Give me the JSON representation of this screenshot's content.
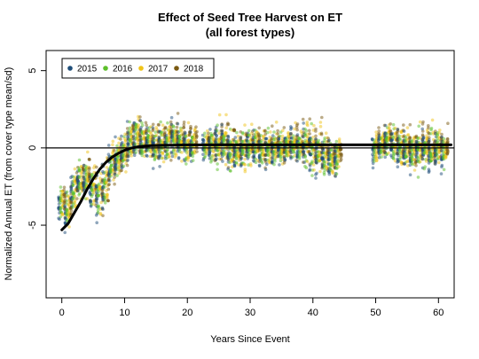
{
  "chart_data": {
    "type": "scatter",
    "title": "Effect of Seed Tree Harvest on ET",
    "subtitle": "(all forest types)",
    "xlabel": "Years Since Event",
    "ylabel": "Normalized Annual ET (from cover type mean/sd)",
    "xlim": [
      -2.5,
      62.5
    ],
    "ylim": [
      -9.7,
      6.3
    ],
    "xticks": [
      0,
      10,
      20,
      30,
      40,
      50,
      60
    ],
    "yticks": [
      -5,
      0,
      5
    ],
    "grid": false,
    "legend_position": "top-left",
    "reference_line_y": 0,
    "series": [
      {
        "name": "2015",
        "color": "#1f4e79",
        "offset": -0.45
      },
      {
        "name": "2016",
        "color": "#5cbf2a",
        "offset": -0.15
      },
      {
        "name": "2017",
        "color": "#f0c419",
        "offset": 0.15
      },
      {
        "name": "2018",
        "color": "#7a5a12",
        "offset": 0.45
      }
    ],
    "columns": [
      {
        "x": 0,
        "mean": -3.6,
        "spread": 1.4
      },
      {
        "x": 1,
        "mean": -4.0,
        "spread": 1.6
      },
      {
        "x": 2,
        "mean": -2.6,
        "spread": 1.6
      },
      {
        "x": 3,
        "mean": -2.0,
        "spread": 1.7
      },
      {
        "x": 4,
        "mean": -2.0,
        "spread": 1.8
      },
      {
        "x": 5,
        "mean": -2.5,
        "spread": 2.0
      },
      {
        "x": 6,
        "mean": -3.0,
        "spread": 2.2
      },
      {
        "x": 7,
        "mean": -2.5,
        "spread": 2.2
      },
      {
        "x": 8,
        "mean": -1.2,
        "spread": 1.8
      },
      {
        "x": 9,
        "mean": -0.6,
        "spread": 1.7
      },
      {
        "x": 10,
        "mean": -0.3,
        "spread": 1.6
      },
      {
        "x": 11,
        "mean": 0.5,
        "spread": 1.6
      },
      {
        "x": 12,
        "mean": 0.8,
        "spread": 1.6
      },
      {
        "x": 13,
        "mean": 0.6,
        "spread": 1.7
      },
      {
        "x": 14,
        "mean": 0.4,
        "spread": 1.8
      },
      {
        "x": 15,
        "mean": 0.2,
        "spread": 1.9
      },
      {
        "x": 16,
        "mean": 0.3,
        "spread": 1.8
      },
      {
        "x": 17,
        "mean": 0.5,
        "spread": 1.6
      },
      {
        "x": 18,
        "mean": 0.6,
        "spread": 1.5
      },
      {
        "x": 19,
        "mean": 0.4,
        "spread": 1.5
      },
      {
        "x": 20,
        "mean": 0.3,
        "spread": 1.5
      },
      {
        "x": 21,
        "mean": 0.4,
        "spread": 1.4
      },
      {
        "x": 23,
        "mean": 0.2,
        "spread": 1.2
      },
      {
        "x": 24,
        "mean": 0.0,
        "spread": 1.6
      },
      {
        "x": 25,
        "mean": 0.3,
        "spread": 1.8
      },
      {
        "x": 26,
        "mean": 0.2,
        "spread": 1.9
      },
      {
        "x": 27,
        "mean": 0.0,
        "spread": 1.8
      },
      {
        "x": 28,
        "mean": -0.2,
        "spread": 1.8
      },
      {
        "x": 29,
        "mean": 0.0,
        "spread": 1.8
      },
      {
        "x": 30,
        "mean": 0.1,
        "spread": 1.7
      },
      {
        "x": 31,
        "mean": 0.2,
        "spread": 1.6
      },
      {
        "x": 32,
        "mean": 0.0,
        "spread": 1.6
      },
      {
        "x": 33,
        "mean": -0.1,
        "spread": 1.5
      },
      {
        "x": 34,
        "mean": 0.1,
        "spread": 1.5
      },
      {
        "x": 35,
        "mean": 0.0,
        "spread": 1.5
      },
      {
        "x": 36,
        "mean": 0.2,
        "spread": 1.4
      },
      {
        "x": 37,
        "mean": 0.3,
        "spread": 1.6
      },
      {
        "x": 38,
        "mean": 0.1,
        "spread": 1.8
      },
      {
        "x": 39,
        "mean": 0.3,
        "spread": 2.0
      },
      {
        "x": 40,
        "mean": -0.2,
        "spread": 2.1
      },
      {
        "x": 41,
        "mean": -0.3,
        "spread": 2.0
      },
      {
        "x": 42,
        "mean": -0.5,
        "spread": 1.8
      },
      {
        "x": 43,
        "mean": -0.6,
        "spread": 1.7
      },
      {
        "x": 44,
        "mean": -0.5,
        "spread": 1.4
      },
      {
        "x": 50,
        "mean": 0.1,
        "spread": 1.3
      },
      {
        "x": 51,
        "mean": 0.3,
        "spread": 1.4
      },
      {
        "x": 52,
        "mean": 0.5,
        "spread": 1.5
      },
      {
        "x": 53,
        "mean": 0.3,
        "spread": 1.5
      },
      {
        "x": 54,
        "mean": 0.0,
        "spread": 1.6
      },
      {
        "x": 55,
        "mean": 0.0,
        "spread": 1.8
      },
      {
        "x": 56,
        "mean": -0.2,
        "spread": 1.9
      },
      {
        "x": 57,
        "mean": 0.0,
        "spread": 1.9
      },
      {
        "x": 58,
        "mean": 0.1,
        "spread": 1.8
      },
      {
        "x": 59,
        "mean": 0.0,
        "spread": 1.7
      },
      {
        "x": 60,
        "mean": 0.1,
        "spread": 1.6
      },
      {
        "x": 61,
        "mean": -0.2,
        "spread": 1.5
      }
    ],
    "fit_curve": {
      "color": "#000000",
      "points": [
        [
          0,
          -5.3
        ],
        [
          1,
          -4.9
        ],
        [
          2,
          -4.2
        ],
        [
          3,
          -3.5
        ],
        [
          4,
          -2.7
        ],
        [
          5,
          -2.0
        ],
        [
          6,
          -1.4
        ],
        [
          7,
          -0.95
        ],
        [
          8,
          -0.6
        ],
        [
          9,
          -0.35
        ],
        [
          10,
          -0.15
        ],
        [
          11,
          -0.02
        ],
        [
          12,
          0.06
        ],
        [
          13,
          0.11
        ],
        [
          14,
          0.14
        ],
        [
          15,
          0.16
        ],
        [
          16,
          0.17
        ],
        [
          18,
          0.18
        ],
        [
          20,
          0.19
        ],
        [
          25,
          0.2
        ],
        [
          30,
          0.2
        ],
        [
          40,
          0.2
        ],
        [
          50,
          0.2
        ],
        [
          62,
          0.2
        ]
      ]
    }
  }
}
